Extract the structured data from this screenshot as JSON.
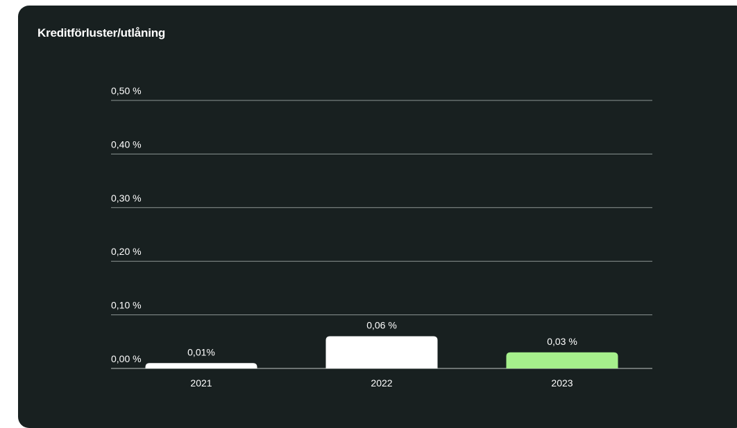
{
  "chart_data": {
    "type": "bar",
    "title": "Kreditförluster/utlåning",
    "categories": [
      "2021",
      "2022",
      "2023"
    ],
    "values": [
      0.01,
      0.06,
      0.03
    ],
    "value_labels": [
      "0,01%",
      "0,06 %",
      "0,03 %"
    ],
    "ylim": [
      0,
      0.5
    ],
    "yticks": [
      0.0,
      0.1,
      0.2,
      0.3,
      0.4,
      0.5
    ],
    "ytick_labels": [
      "0,00 %",
      "0,10 %",
      "0,20 %",
      "0,30 %",
      "0,40 %",
      "0,50 %"
    ],
    "bar_colors": [
      "#ffffff",
      "#ffffff",
      "#a6f08c"
    ],
    "background_color": "#182020",
    "grid": true,
    "xlabel": "",
    "ylabel": ""
  }
}
